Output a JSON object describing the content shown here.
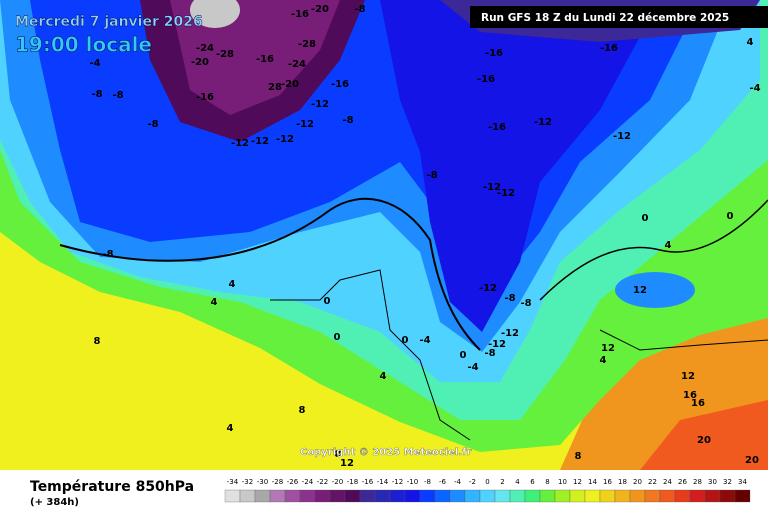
{
  "header": {
    "date": "Mercredi 7 janvier 2026",
    "time": "19:00 locale",
    "run": "Run GFS 18 Z du Lundi 22 décembre 2025"
  },
  "copyright": "Copyright © 2025 Meteociel.fr",
  "footer": {
    "variable": "Température 850hPa",
    "lead_time": "(+ 384h)"
  },
  "color_scale": {
    "values": [
      -34,
      -32,
      -30,
      -28,
      -26,
      -24,
      -22,
      -20,
      -18,
      -16,
      -14,
      -12,
      -10,
      -8,
      -6,
      -4,
      -2,
      0,
      2,
      4,
      6,
      8,
      10,
      12,
      14,
      16,
      18,
      20,
      22,
      24,
      26,
      28,
      30,
      32,
      34
    ],
    "colors": [
      "#e0e0e0",
      "#c8c8c8",
      "#a8a8a8",
      "#b478b4",
      "#a050a0",
      "#8c328c",
      "#781e78",
      "#641464",
      "#500a5a",
      "#3c2896",
      "#2828b4",
      "#1e1ed2",
      "#1414e6",
      "#0a3cff",
      "#0a64ff",
      "#1e8cff",
      "#32b4ff",
      "#50d2ff",
      "#64e6f0",
      "#50f0b4",
      "#3cf078",
      "#64f03c",
      "#a0f028",
      "#d2f01e",
      "#f0f01e",
      "#f0d21e",
      "#f0b41e",
      "#f0961e",
      "#f0781e",
      "#f05a1e",
      "#e63c1e",
      "#d21e1e",
      "#b41414",
      "#8c0a0a",
      "#640000"
    ]
  },
  "contour_labels": [
    -16,
    -20,
    -8,
    -24,
    -28,
    -20,
    -16,
    -28,
    -24,
    -16,
    -20,
    28,
    -16,
    -12,
    -12,
    -8,
    -12,
    -12,
    -12,
    -8,
    -8,
    -8,
    -4,
    -8,
    -16,
    -16,
    -16,
    -12,
    -12,
    -16,
    4,
    -4,
    -8,
    -12,
    -12,
    -12,
    -8,
    -8,
    -12,
    -12,
    -8,
    -4,
    0,
    0,
    0,
    4,
    4,
    4,
    8,
    8,
    4,
    8,
    12,
    16,
    16,
    20,
    20,
    12,
    8,
    0,
    0,
    4,
    12,
    4,
    12,
    -4,
    0
  ]
}
